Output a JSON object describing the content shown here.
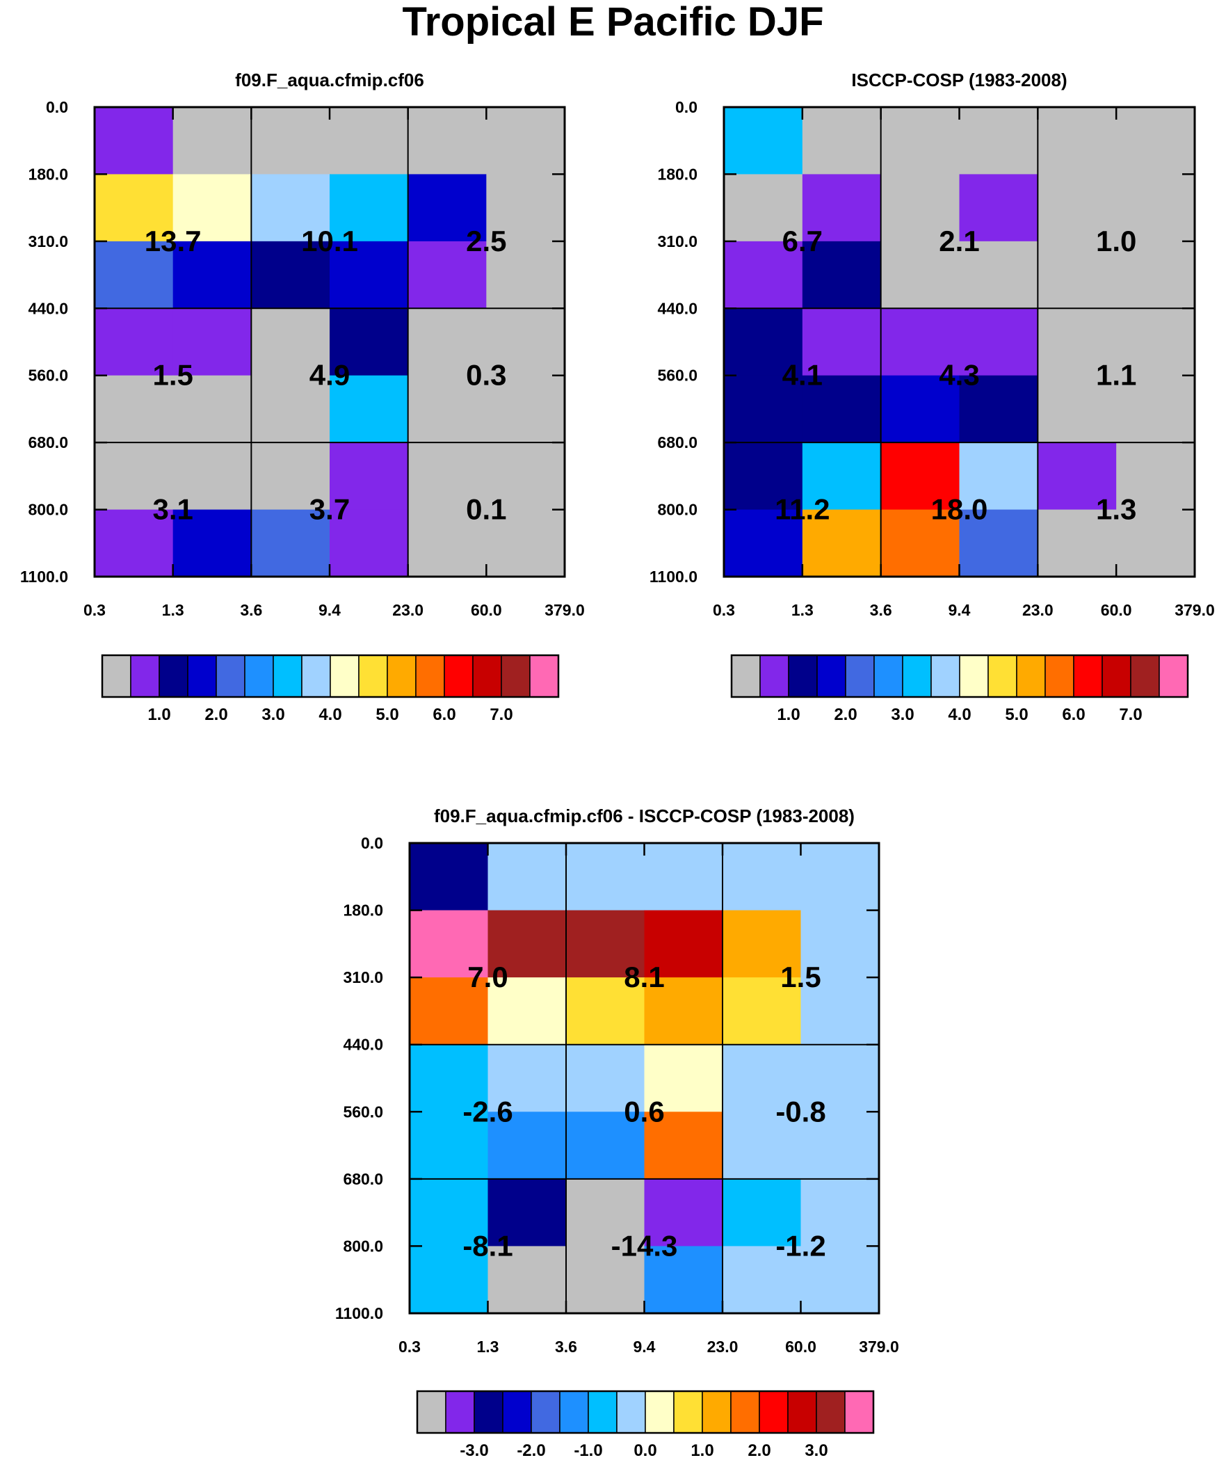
{
  "title": "Tropical E Pacific DJF",
  "x_ticks": [
    "0.3",
    "1.3",
    "3.6",
    "9.4",
    "23.0",
    "60.0",
    "379.0"
  ],
  "y_ticks": [
    "0.0",
    "180.0",
    "310.0",
    "440.0",
    "560.0",
    "680.0",
    "800.0",
    "1100.0"
  ],
  "colorbar_palette": [
    "#c0c0c0",
    "#8227ea",
    "#00008b",
    "#0000cd",
    "#4169e1",
    "#1e90ff",
    "#00bfff",
    "#a0d2ff",
    "#ffffc8",
    "#ffe034",
    "#ffaa00",
    "#ff6e00",
    "#ff0000",
    "#c80000",
    "#a02020",
    "#ff69b4"
  ],
  "chart_data": [
    {
      "type": "heatmap",
      "title": "f09.F_aqua.cfmip.cf06",
      "xlabel": "",
      "ylabel": "",
      "cells": [
        [
          1,
          0,
          0,
          0,
          0,
          0
        ],
        [
          9,
          8,
          7,
          6,
          3,
          0
        ],
        [
          4,
          3,
          2,
          3,
          1,
          0
        ],
        [
          1,
          1,
          0,
          2,
          0,
          0
        ],
        [
          0,
          0,
          0,
          6,
          0,
          0
        ],
        [
          0,
          0,
          0,
          1,
          0,
          0
        ],
        [
          1,
          3,
          4,
          1,
          0,
          0
        ]
      ],
      "box_labels": [
        "13.7",
        "10.1",
        "2.5",
        "1.5",
        "4.9",
        "0.3",
        "3.1",
        "3.7",
        "0.1"
      ],
      "colorbar_labels": [
        "1.0",
        "2.0",
        "3.0",
        "4.0",
        "5.0",
        "6.0",
        "7.0"
      ]
    },
    {
      "type": "heatmap",
      "title": "ISCCP-COSP (1983-2008)",
      "xlabel": "",
      "ylabel": "",
      "cells": [
        [
          6,
          0,
          0,
          0,
          0,
          0
        ],
        [
          0,
          1,
          0,
          1,
          0,
          0
        ],
        [
          1,
          2,
          0,
          0,
          0,
          0
        ],
        [
          2,
          1,
          1,
          1,
          0,
          0
        ],
        [
          2,
          2,
          3,
          2,
          0,
          0
        ],
        [
          2,
          6,
          12,
          7,
          1,
          0
        ],
        [
          3,
          10,
          11,
          4,
          0,
          0
        ]
      ],
      "box_labels": [
        "6.7",
        "2.1",
        "1.0",
        "4.1",
        "4.3",
        "1.1",
        "11.2",
        "18.0",
        "1.3"
      ],
      "colorbar_labels": [
        "1.0",
        "2.0",
        "3.0",
        "4.0",
        "5.0",
        "6.0",
        "7.0"
      ]
    },
    {
      "type": "heatmap",
      "title": "f09.F_aqua.cfmip.cf06 - ISCCP-COSP (1983-2008)",
      "xlabel": "",
      "ylabel": "",
      "cells": [
        [
          2,
          7,
          7,
          7,
          7,
          7
        ],
        [
          15,
          14,
          14,
          13,
          10,
          7
        ],
        [
          11,
          8,
          9,
          10,
          9,
          7
        ],
        [
          6,
          7,
          7,
          8,
          7,
          7
        ],
        [
          6,
          5,
          5,
          11,
          7,
          7
        ],
        [
          6,
          2,
          0,
          1,
          6,
          7
        ],
        [
          6,
          0,
          0,
          5,
          7,
          7
        ]
      ],
      "box_labels": [
        "7.0",
        "8.1",
        "1.5",
        "-2.6",
        "0.6",
        "-0.8",
        "-8.1",
        "-14.3",
        "-1.2"
      ],
      "colorbar_labels": [
        "-3.0",
        "-2.0",
        "-1.0",
        "0.0",
        "1.0",
        "2.0",
        "3.0"
      ]
    }
  ]
}
